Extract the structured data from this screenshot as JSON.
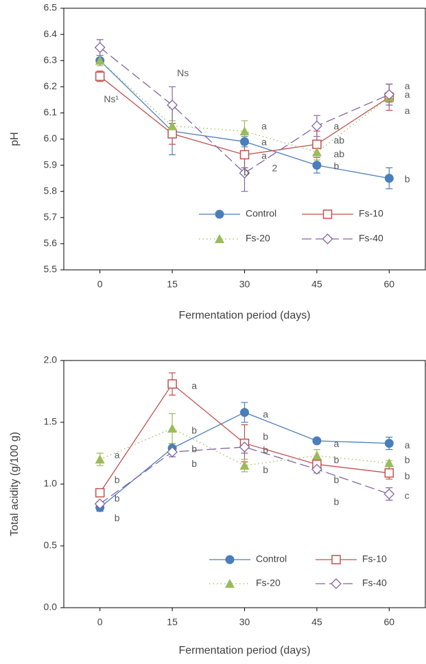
{
  "chart_data": [
    {
      "type": "line",
      "ylabel": "pH",
      "xlabel": "Fermentation period (days)",
      "x": [
        0,
        15,
        30,
        45,
        60
      ],
      "xlim": [
        -7.5,
        67.5
      ],
      "xticks": [
        0,
        15,
        30,
        45,
        60
      ],
      "ylim": [
        5.5,
        6.5
      ],
      "yticks": [
        5.5,
        5.6,
        5.7,
        5.8,
        5.9,
        {
          "value": 6,
          "label": "6.0"
        },
        6.1,
        6.2,
        6.3,
        6.4,
        6.5
      ],
      "series": [
        {
          "name": "Control",
          "color": "#4a7ebb",
          "marker": "circle",
          "line_style": "solid",
          "values": [
            6.3,
            6.03,
            5.99,
            5.9,
            5.85
          ],
          "errors": [
            0.01,
            0.09,
            0.02,
            0.03,
            0.04
          ]
        },
        {
          "name": "Fs-10",
          "color": "#c0504d",
          "marker": "square",
          "line_style": "solid",
          "values": [
            6.24,
            6.02,
            5.94,
            5.98,
            6.16
          ],
          "errors": [
            0.02,
            0.04,
            0.05,
            0.05,
            0.05
          ]
        },
        {
          "name": "Fs-20",
          "color": "#9bbb59",
          "marker": "triangle",
          "line_style": "dotted",
          "values": [
            6.3,
            6.05,
            6.03,
            5.95,
            6.16
          ],
          "errors": [
            0.02,
            0.02,
            0.04,
            0.03,
            0.02
          ]
        },
        {
          "name": "Fs-40",
          "color": "#8064a2",
          "marker": "diamond",
          "line_style": "dashed",
          "values": [
            6.35,
            6.13,
            5.87,
            6.05,
            6.17
          ],
          "errors": [
            0.03,
            0.07,
            0.07,
            0.04,
            0.04
          ]
        }
      ],
      "annotations": [
        {
          "text": "Ns¹",
          "x": 0.8,
          "y": 6.15
        },
        {
          "text": "Ns",
          "x": 16,
          "y": 6.25
        },
        {
          "text": "a",
          "x": 33.5,
          "y": 6.046
        },
        {
          "text": "a",
          "x": 33.5,
          "y": 5.986
        },
        {
          "text": "a",
          "x": 33.5,
          "y": 5.933
        },
        {
          "text": "b",
          "x": 29.8,
          "y": 5.87
        },
        {
          "text": "2",
          "x": 35.7,
          "y": 5.886
        },
        {
          "text": "a",
          "x": 48.5,
          "y": 6.046
        },
        {
          "text": "ab",
          "x": 48.5,
          "y": 5.993
        },
        {
          "text": "ab",
          "x": 48.5,
          "y": 5.94
        },
        {
          "text": "b",
          "x": 48.5,
          "y": 5.894
        },
        {
          "text": "a",
          "x": 63.2,
          "y": 6.2
        },
        {
          "text": "a",
          "x": 63.2,
          "y": 6.167
        },
        {
          "text": "a",
          "x": 63.2,
          "y": 6.106
        },
        {
          "text": "b",
          "x": 63.2,
          "y": 5.844
        }
      ]
    },
    {
      "type": "line",
      "ylabel": "Total acidity (g/100 g)",
      "xlabel": "Fermentation period (days)",
      "x": [
        0,
        15,
        30,
        45,
        60
      ],
      "xlim": [
        -7.5,
        67.5
      ],
      "xticks": [
        0,
        15,
        30,
        45,
        60
      ],
      "ylim": [
        0,
        2
      ],
      "yticks": [
        {
          "value": 0,
          "label": "0.0"
        },
        0.5,
        {
          "value": 1,
          "label": "1.0"
        },
        1.5,
        {
          "value": 2,
          "label": "2.0"
        }
      ],
      "series": [
        {
          "name": "Control",
          "color": "#4a7ebb",
          "marker": "circle",
          "line_style": "solid",
          "values": [
            0.81,
            1.29,
            1.58,
            1.35,
            1.33
          ],
          "errors": [
            0.03,
            0.04,
            0.08,
            0.01,
            0.05
          ]
        },
        {
          "name": "Fs-10",
          "color": "#c0504d",
          "marker": "square",
          "line_style": "solid",
          "values": [
            0.93,
            1.81,
            1.33,
            1.16,
            1.09
          ],
          "errors": [
            0.02,
            0.09,
            0.15,
            0.05,
            0.05
          ]
        },
        {
          "name": "Fs-20",
          "color": "#9bbb59",
          "marker": "triangle",
          "line_style": "dotted",
          "values": [
            1.2,
            1.45,
            1.15,
            1.23,
            1.17
          ],
          "errors": [
            0.05,
            0.12,
            0.05,
            0.05,
            0.02
          ]
        },
        {
          "name": "Fs-40",
          "color": "#8064a2",
          "marker": "diamond",
          "line_style": "dashed",
          "values": [
            0.84,
            1.26,
            1.3,
            1.12,
            0.92
          ],
          "errors": [
            0.02,
            0.04,
            0.05,
            0.03,
            0.05
          ]
        }
      ],
      "annotations": [
        {
          "text": "a",
          "x": 3,
          "y": 1.23
        },
        {
          "text": "b",
          "x": 3,
          "y": 1.03
        },
        {
          "text": "b",
          "x": 3,
          "y": 0.88
        },
        {
          "text": "b",
          "x": 3,
          "y": 0.72
        },
        {
          "text": "a",
          "x": 19,
          "y": 1.79
        },
        {
          "text": "b",
          "x": 19,
          "y": 1.43
        },
        {
          "text": "b",
          "x": 19,
          "y": 1.28
        },
        {
          "text": "b",
          "x": 19,
          "y": 1.16
        },
        {
          "text": "a",
          "x": 33.8,
          "y": 1.56
        },
        {
          "text": "b",
          "x": 33.8,
          "y": 1.38
        },
        {
          "text": "b",
          "x": 33.8,
          "y": 1.27
        },
        {
          "text": "b",
          "x": 33.8,
          "y": 1.11
        },
        {
          "text": "a",
          "x": 48.5,
          "y": 1.32
        },
        {
          "text": "b",
          "x": 48.5,
          "y": 1.19
        },
        {
          "text": "b",
          "x": 48.5,
          "y": 1.03
        },
        {
          "text": "b",
          "x": 48.5,
          "y": 0.85
        },
        {
          "text": "a",
          "x": 63.2,
          "y": 1.31
        },
        {
          "text": "b",
          "x": 63.2,
          "y": 1.19
        },
        {
          "text": "b",
          "x": 63.2,
          "y": 1.06
        },
        {
          "text": "c",
          "x": 63.2,
          "y": 0.9
        }
      ]
    }
  ]
}
